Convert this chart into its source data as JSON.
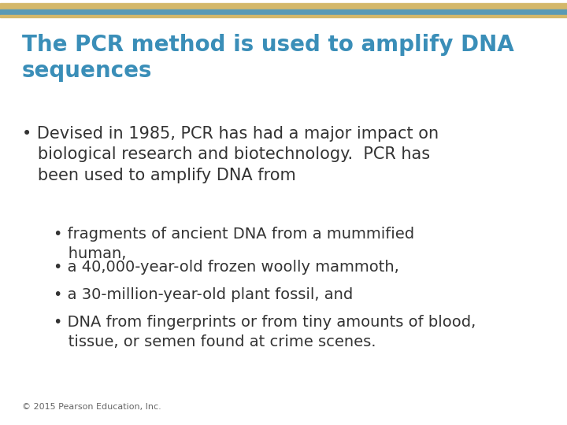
{
  "title_line1": "The PCR method is used to amplify DNA",
  "title_line2": "sequences",
  "title_color": "#3a8eb8",
  "bg_color": "#ffffff",
  "top_bar_gold_color": "#d4b86a",
  "top_bar_blue_color": "#5a9ab5",
  "copyright": "© 2015 Pearson Education, Inc.",
  "body_color": "#333333",
  "bullet1_main_line1": "Devised in 1985, PCR has had a major impact on",
  "bullet1_main_line2": "biological research and biotechnology.  PCR has",
  "bullet1_main_line3": "been used to amplify DNA from",
  "sub_bullets": [
    [
      "fragments of ancient DNA from a mummified",
      "human,"
    ],
    [
      "a 40,000-year-old frozen woolly mammoth,"
    ],
    [
      "a 30-million-year-old plant fossil, and"
    ],
    [
      "DNA from fingerprints or from tiny amounts of blood,",
      "tissue, or semen found at crime scenes."
    ]
  ],
  "title_fontsize": 20,
  "body_fontsize": 15,
  "sub_fontsize": 14,
  "copyright_fontsize": 8
}
